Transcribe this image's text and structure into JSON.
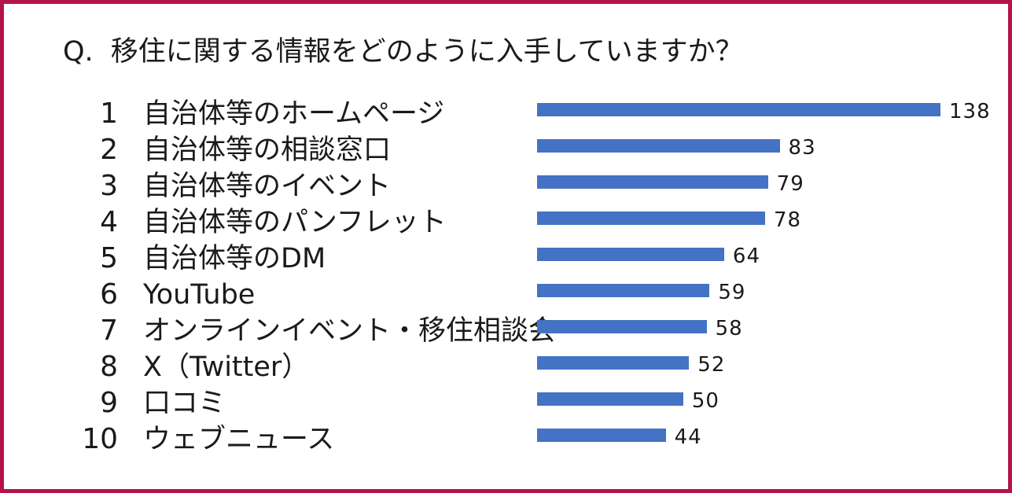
{
  "question": {
    "prefix": "Q.",
    "text": "移住に関する情報をどのように入手していますか？"
  },
  "colors": {
    "border": "#b5134b",
    "bar": "#4472c4"
  },
  "chart_data": {
    "type": "bar",
    "orientation": "horizontal",
    "title": "Q.　移住に関する情報をどのように入手していますか？",
    "ranks": [
      "1",
      "2",
      "3",
      "4",
      "5",
      "6",
      "7",
      "8",
      "9",
      "10"
    ],
    "categories": [
      "自治体等のホームページ",
      "自治体等の相談窓口",
      "自治体等のイベント",
      "自治体等のパンフレット",
      "自治体等のDM",
      "YouTube",
      "オンラインイベント・移住相談会",
      "X（Twitter）",
      "口コミ",
      "ウェブニュース"
    ],
    "values": [
      138,
      83,
      79,
      78,
      64,
      59,
      58,
      52,
      50,
      44
    ],
    "xlim": [
      0,
      138
    ],
    "grid": false,
    "legend": "none"
  }
}
